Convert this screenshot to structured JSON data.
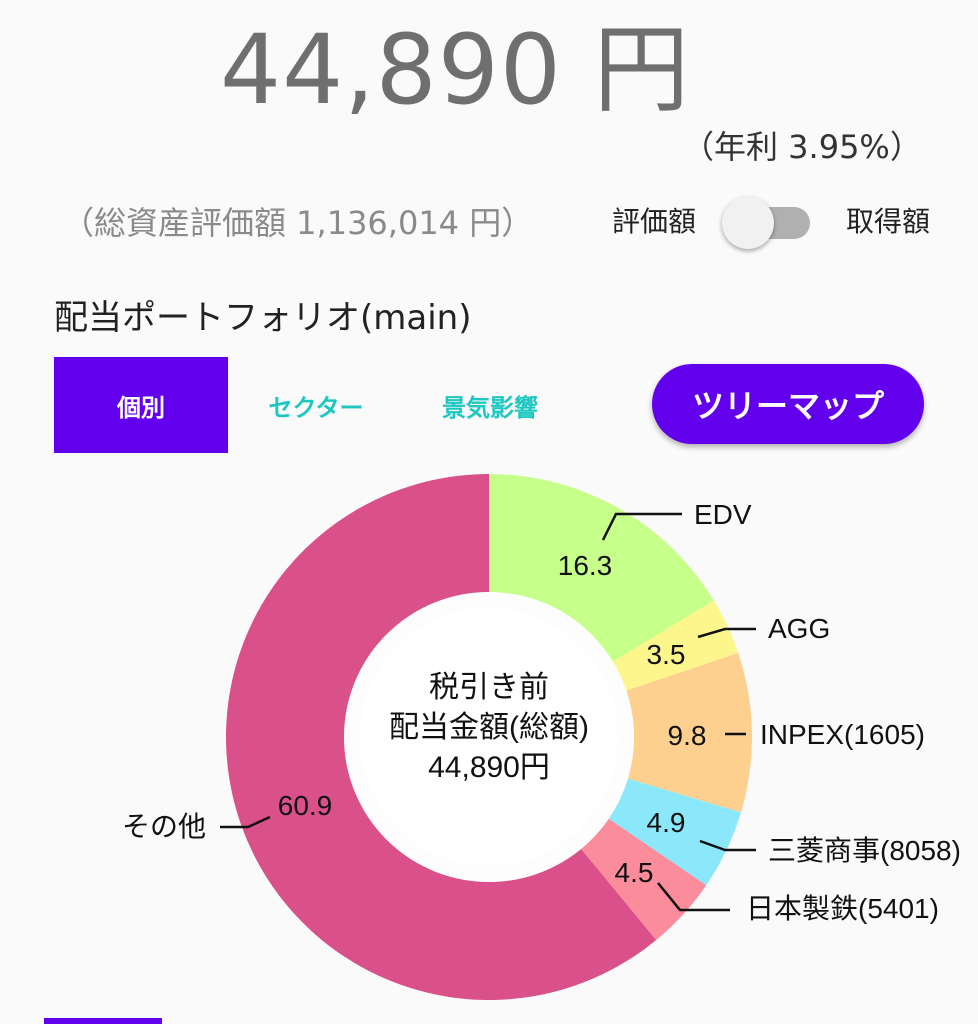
{
  "header": {
    "dividend_amount": "44,890 円",
    "yield_text": "（年利 3.95%）",
    "total_assets_text": "（総資産評価額 1,136,014 円）"
  },
  "toggle": {
    "left_label": "評価額",
    "right_label": "取得額",
    "state": "off"
  },
  "portfolio": {
    "title": "配当ポートフォリオ(main)",
    "tabs": [
      "個別",
      "セクター",
      "景気影響"
    ],
    "active_tab": 0,
    "treemap_button": "ツリーマップ"
  },
  "colors": {
    "primary": "#6200ee",
    "tab_inactive_text": "#1ec8c0"
  },
  "chart_data": {
    "type": "pie",
    "center_label": [
      "税引き前",
      "配当金額(総額)",
      "44,890円"
    ],
    "series": [
      {
        "name": "EDV",
        "value": 16.3,
        "label": "16.3",
        "color": "#c6ff8a"
      },
      {
        "name": "AGG",
        "value": 3.5,
        "label": "3.5",
        "color": "#fdf68c"
      },
      {
        "name": "INPEX(1605)",
        "value": 9.8,
        "label": "9.8",
        "color": "#fed08f"
      },
      {
        "name": "三菱商事(8058)",
        "value": 4.9,
        "label": "4.9",
        "color": "#8be8fb"
      },
      {
        "name": "日本製鉄(5401)",
        "value": 4.5,
        "label": "4.5",
        "color": "#fb8c9c"
      },
      {
        "name": "その他",
        "value": 60.9,
        "label": "60.9",
        "color": "#da508a"
      }
    ]
  }
}
